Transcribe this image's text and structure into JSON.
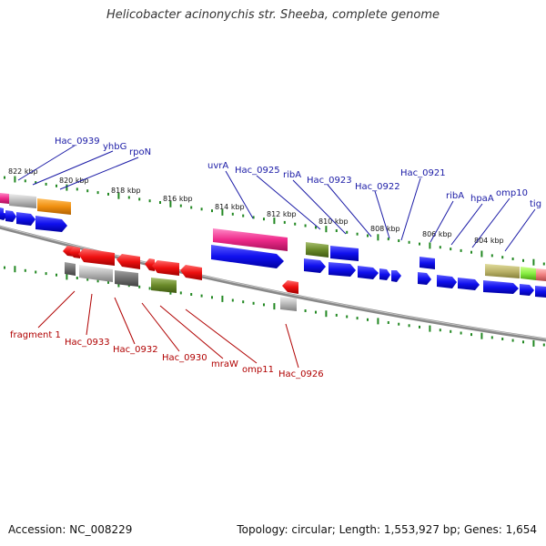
{
  "title": "Helicobacter acinonychis str. Sheeba, complete genome",
  "accession": "Accession: NC_008229",
  "summary": "Topology: circular; Length: 1,553,927 bp; Genes: 1,654",
  "colors": {
    "forward_gene": "#1010ee",
    "reverse_gene": "#ee1010",
    "label_forward": "#1a1aa6",
    "label_reverse": "#b00000",
    "tick": "#228822",
    "backbone": "#888888"
  },
  "scale_labels": [
    "822 kbp",
    "820 kbp",
    "818 kbp",
    "816 kbp",
    "814 kbp",
    "812 kbp",
    "810 kbp",
    "808 kbp",
    "806 kbp",
    "804 kbp"
  ],
  "forward_labels": [
    "Hac_0939",
    "yhbG",
    "rpoN",
    "uvrA",
    "Hac_0925",
    "ribA",
    "Hac_0923",
    "Hac_0922",
    "Hac_0921",
    "ribA",
    "hpaA",
    "omp10",
    "tig"
  ],
  "reverse_labels": [
    "fragment 1",
    "Hac_0933",
    "Hac_0932",
    "Hac_0930",
    "mraW",
    "omp11",
    "Hac_0926"
  ]
}
